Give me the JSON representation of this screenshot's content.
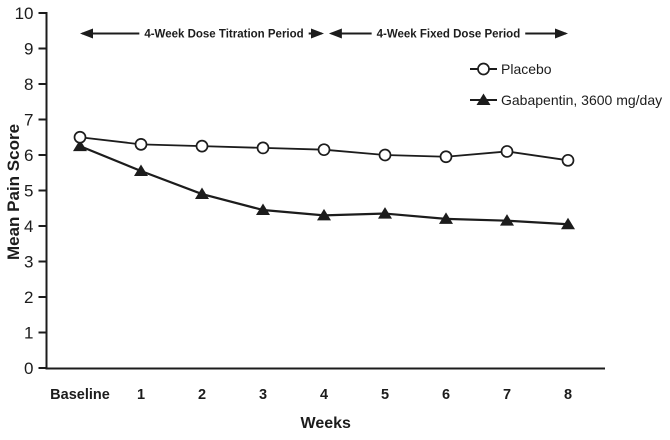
{
  "colors": {
    "ink": "#1c1c1c",
    "background": "#ffffff",
    "marker_fill_open": "#ffffff"
  },
  "chart_data": {
    "type": "line",
    "title": "",
    "xlabel": "Weeks",
    "ylabel": "Mean Pain Score",
    "x_categories": [
      "Baseline",
      "1",
      "2",
      "3",
      "4",
      "5",
      "6",
      "7",
      "8"
    ],
    "ylim": [
      0,
      10
    ],
    "yticks": [
      0,
      1,
      2,
      3,
      4,
      5,
      6,
      7,
      8,
      9,
      10
    ],
    "grid": false,
    "legend_position": "top-right",
    "series": [
      {
        "name": "Placebo",
        "marker": "open-circle",
        "values": [
          6.5,
          6.3,
          6.25,
          6.2,
          6.15,
          6.0,
          5.95,
          6.1,
          5.85
        ]
      },
      {
        "name": "Gabapentin, 3600 mg/day",
        "marker": "filled-triangle",
        "values": [
          6.25,
          5.55,
          4.9,
          4.45,
          4.3,
          4.35,
          4.2,
          4.15,
          4.05
        ]
      }
    ],
    "annotations": [
      {
        "label": "4-Week Dose Titration Period",
        "x_from": 0,
        "x_to": 4,
        "label_dx": 22
      },
      {
        "label": "4-Week Fixed Dose Period",
        "x_from": 4.08,
        "x_to": 8,
        "label_dx": 0
      }
    ]
  }
}
